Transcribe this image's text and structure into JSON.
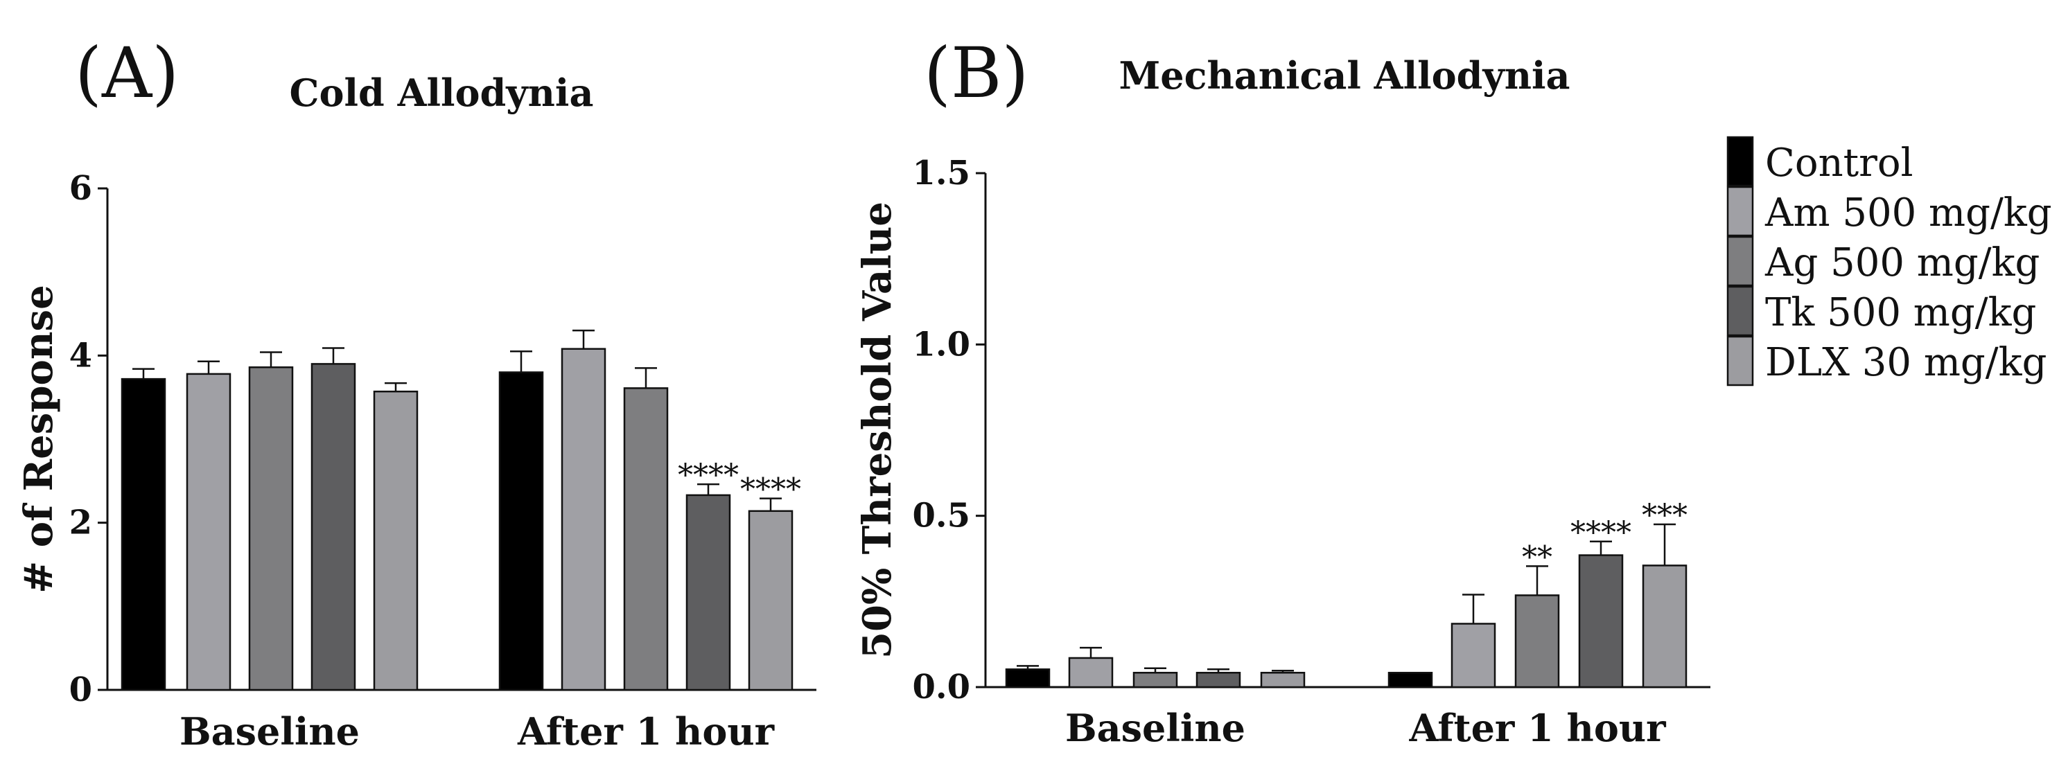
{
  "chart_data": [
    {
      "panel": "(A)",
      "type": "bar",
      "title": "Cold Allodynia",
      "xlabel": "",
      "ylabel": "# of Response",
      "ylim": [
        0,
        6
      ],
      "yticks": [
        "0",
        "2",
        "4",
        "6"
      ],
      "categories": [
        "Baseline",
        "After 1 hour"
      ],
      "series": [
        {
          "name": "Control",
          "color": "#000000",
          "values": [
            3.72,
            3.8
          ],
          "errors": [
            0.12,
            0.25
          ],
          "sig": [
            "",
            ""
          ]
        },
        {
          "name": "Am 500 mg/kg",
          "color": "#a0a0a5",
          "values": [
            3.78,
            4.08
          ],
          "errors": [
            0.15,
            0.22
          ],
          "sig": [
            "",
            ""
          ]
        },
        {
          "name": "Ag 500 mg/kg",
          "color": "#7e7e80",
          "values": [
            3.86,
            3.61
          ],
          "errors": [
            0.18,
            0.24
          ],
          "sig": [
            "",
            ""
          ]
        },
        {
          "name": "Tk 500 mg/kg",
          "color": "#5e5e60",
          "values": [
            3.9,
            2.33
          ],
          "errors": [
            0.19,
            0.13
          ],
          "sig": [
            "",
            "****"
          ]
        },
        {
          "name": "DLX 30 mg/kg",
          "color": "#9c9ca0",
          "values": [
            3.57,
            2.14
          ],
          "errors": [
            0.1,
            0.15
          ],
          "sig": [
            "",
            "****"
          ]
        }
      ]
    },
    {
      "panel": "(B)",
      "type": "bar",
      "title": "Mechanical Allodynia",
      "xlabel": "",
      "ylabel": "50% Threshold Value",
      "ylim": [
        0,
        1.5
      ],
      "yticks": [
        "0.0",
        "0.5",
        "1.0",
        "1.5"
      ],
      "categories": [
        "Baseline",
        "After 1 hour"
      ],
      "series": [
        {
          "name": "Control",
          "color": "#000000",
          "values": [
            0.052,
            0.042
          ],
          "errors": [
            0.01,
            0.0
          ],
          "sig": [
            "",
            ""
          ]
        },
        {
          "name": "Am 500 mg/kg",
          "color": "#a0a0a5",
          "values": [
            0.085,
            0.185
          ],
          "errors": [
            0.03,
            0.085
          ],
          "sig": [
            "",
            ""
          ]
        },
        {
          "name": "Ag 500 mg/kg",
          "color": "#7e7e80",
          "values": [
            0.042,
            0.268
          ],
          "errors": [
            0.013,
            0.085
          ],
          "sig": [
            "",
            "**"
          ]
        },
        {
          "name": "Tk 500 mg/kg",
          "color": "#5e5e60",
          "values": [
            0.042,
            0.385
          ],
          "errors": [
            0.01,
            0.04
          ],
          "sig": [
            "",
            "****"
          ]
        },
        {
          "name": "DLX 30 mg/kg",
          "color": "#9c9ca0",
          "values": [
            0.042,
            0.355
          ],
          "errors": [
            0.006,
            0.12
          ],
          "sig": [
            "",
            "***"
          ]
        }
      ]
    }
  ],
  "legend": {
    "entries": [
      "Control",
      "Am 500 mg/kg",
      "Ag 500 mg/kg",
      "Tk 500 mg/kg",
      "DLX 30 mg/kg"
    ],
    "colors": [
      "#000000",
      "#a0a0a5",
      "#7e7e80",
      "#5e5e60",
      "#9c9ca0"
    ],
    "placement": "right"
  }
}
